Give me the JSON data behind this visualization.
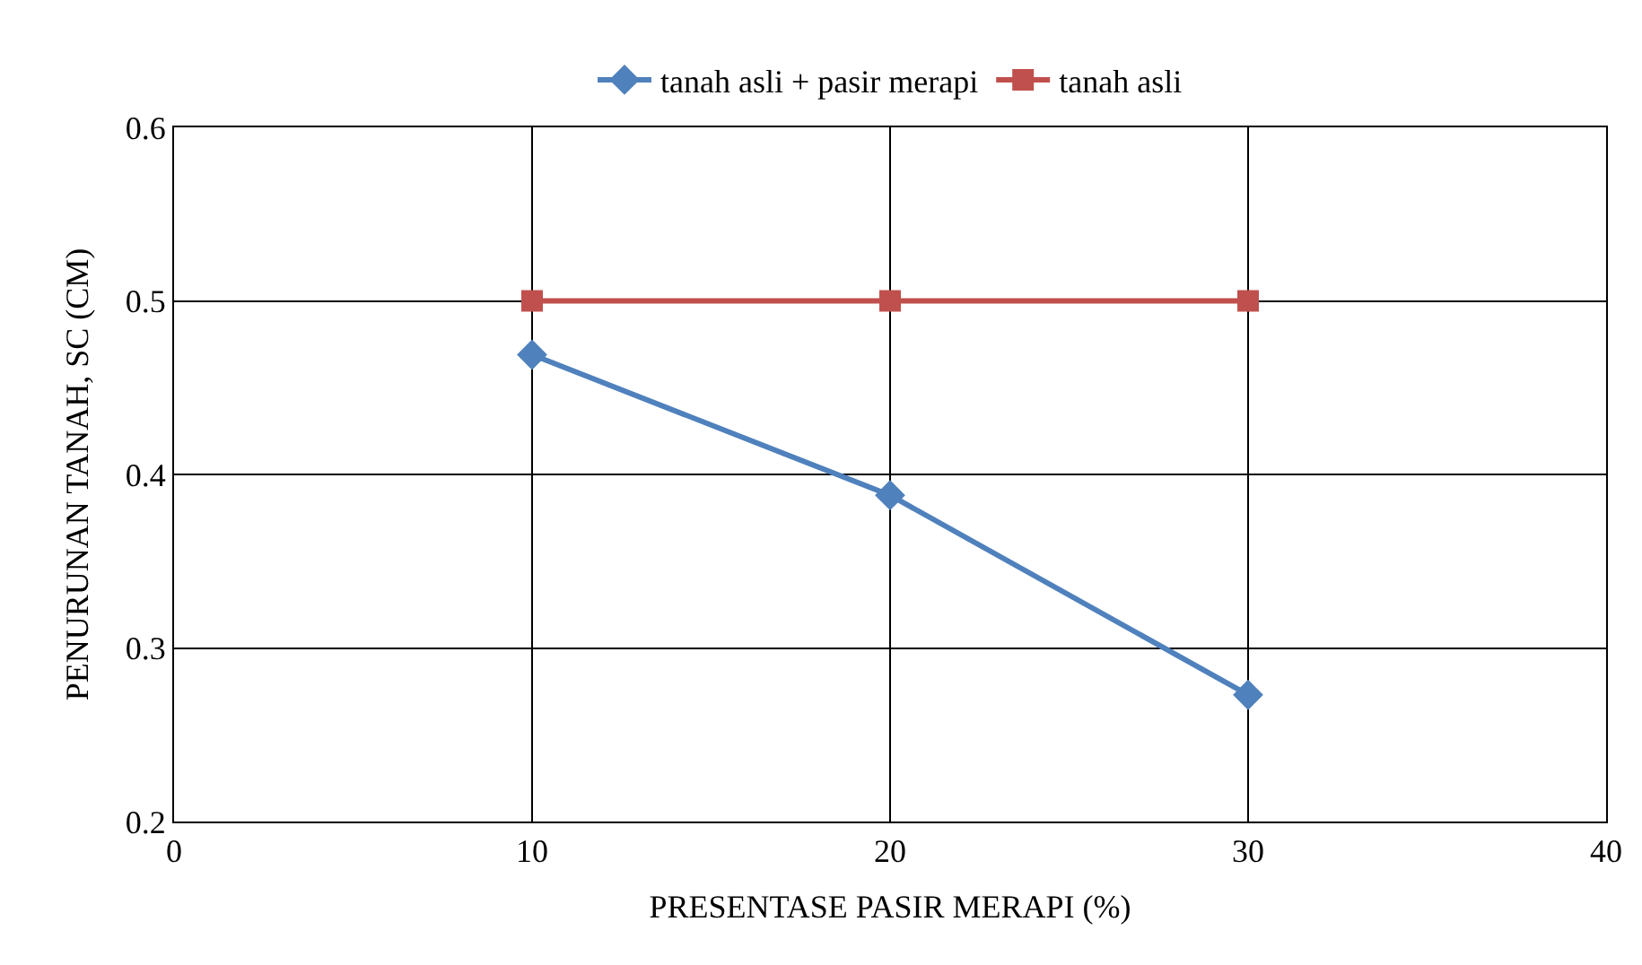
{
  "chart_data": {
    "type": "line",
    "xlabel": "PRESENTASE PASIR MERAPI (%)",
    "ylabel": "PENURUNAN TANAH, SC (CM)",
    "x": [
      10,
      20,
      30
    ],
    "series": [
      {
        "name": "tanah asli + pasir merapi",
        "color": "#4f81bd",
        "values": [
          0.469,
          0.388,
          0.273
        ],
        "marker": "diamond"
      },
      {
        "name": "tanah asli",
        "color": "#c0504d",
        "values": [
          0.5,
          0.5,
          0.5
        ],
        "marker": "square"
      }
    ],
    "xlim": [
      0,
      40
    ],
    "xticks": [
      0,
      10,
      20,
      30,
      40
    ],
    "ylim": [
      0.2,
      0.6
    ],
    "yticks": [
      0.2,
      0.3,
      0.4,
      0.5,
      0.6
    ],
    "grid": true,
    "legend": "top",
    "line_style": "solid"
  }
}
